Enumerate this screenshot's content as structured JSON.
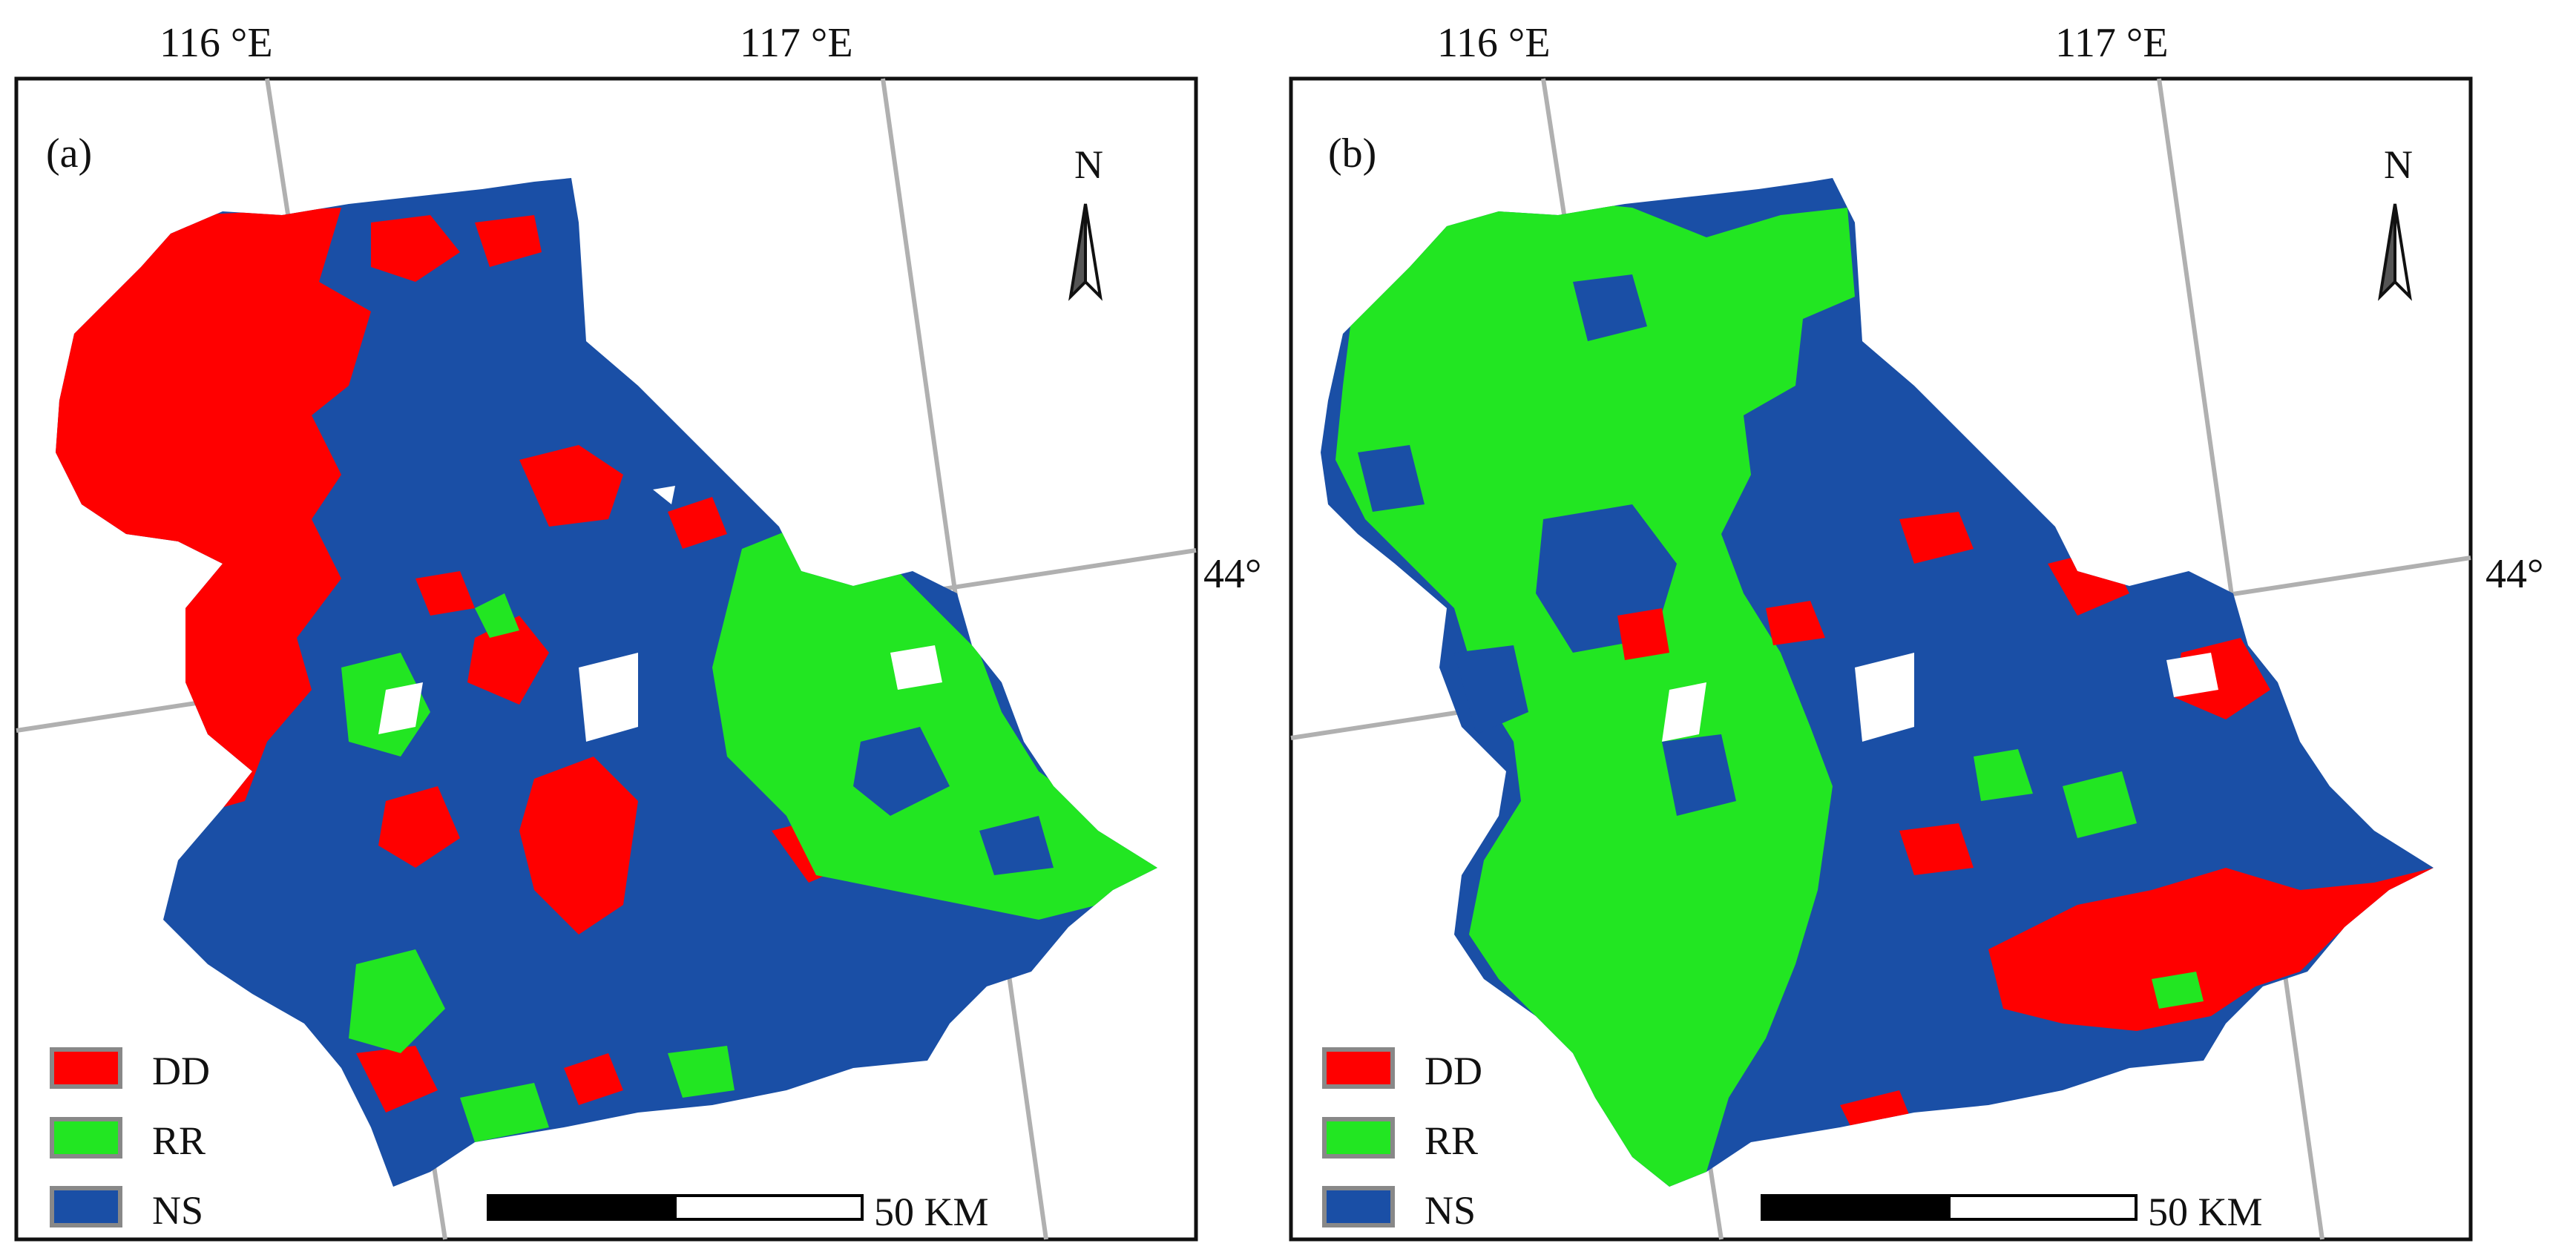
{
  "longitude_labels": [
    "116 °E",
    "117 °E"
  ],
  "latitude_label": "44°",
  "panels": [
    {
      "label": "(a)",
      "north": "N",
      "scale": "50 KM",
      "legend": [
        {
          "key": "DD",
          "color": "#ff0000"
        },
        {
          "key": "RR",
          "color": "#22e622"
        },
        {
          "key": "NS",
          "color": "#1a4fa6"
        }
      ]
    },
    {
      "label": "(b)",
      "north": "N",
      "scale": "50 KM",
      "legend": [
        {
          "key": "DD",
          "color": "#ff0000"
        },
        {
          "key": "RR",
          "color": "#22e622"
        },
        {
          "key": "NS",
          "color": "#1a4fa6"
        }
      ]
    }
  ],
  "colors": {
    "dd": "#ff0000",
    "rr": "#22e622",
    "ns": "#1a4fa6",
    "grid": "#b0b0b0"
  }
}
